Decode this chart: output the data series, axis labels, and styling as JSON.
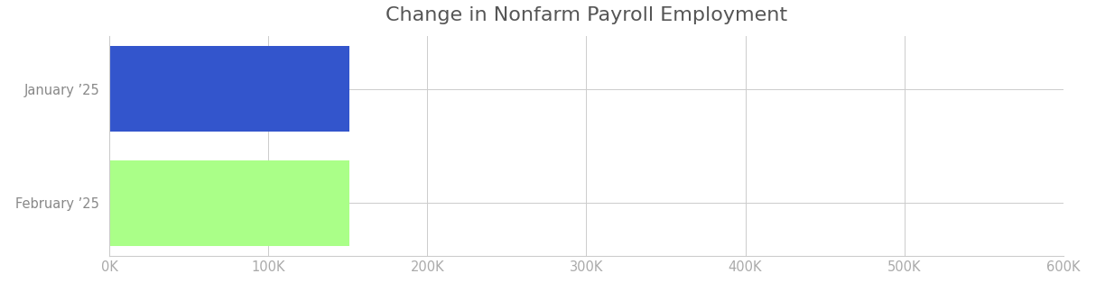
{
  "title": "Change in Nonfarm Payroll Employment",
  "categories": [
    "January ’25",
    "February ’25"
  ],
  "values": [
    151000,
    151000
  ],
  "bar_colors": [
    "#3355cc",
    "#aaff88"
  ],
  "xlim": [
    0,
    600000
  ],
  "xticks": [
    0,
    100000,
    200000,
    300000,
    400000,
    500000,
    600000
  ],
  "xtick_labels": [
    "0K",
    "100K",
    "200K",
    "300K",
    "400K",
    "500K",
    "600K"
  ],
  "background_color": "#ffffff",
  "grid_color": "#cccccc",
  "title_fontsize": 16,
  "tick_fontsize": 10.5,
  "ylabel_fontsize": 10.5,
  "title_color": "#555555",
  "tick_color": "#aaaaaa",
  "ylabel_color": "#888888",
  "spine_color": "#cccccc",
  "bar_height": 0.75,
  "figsize": [
    12.14,
    3.34
  ],
  "dpi": 100
}
